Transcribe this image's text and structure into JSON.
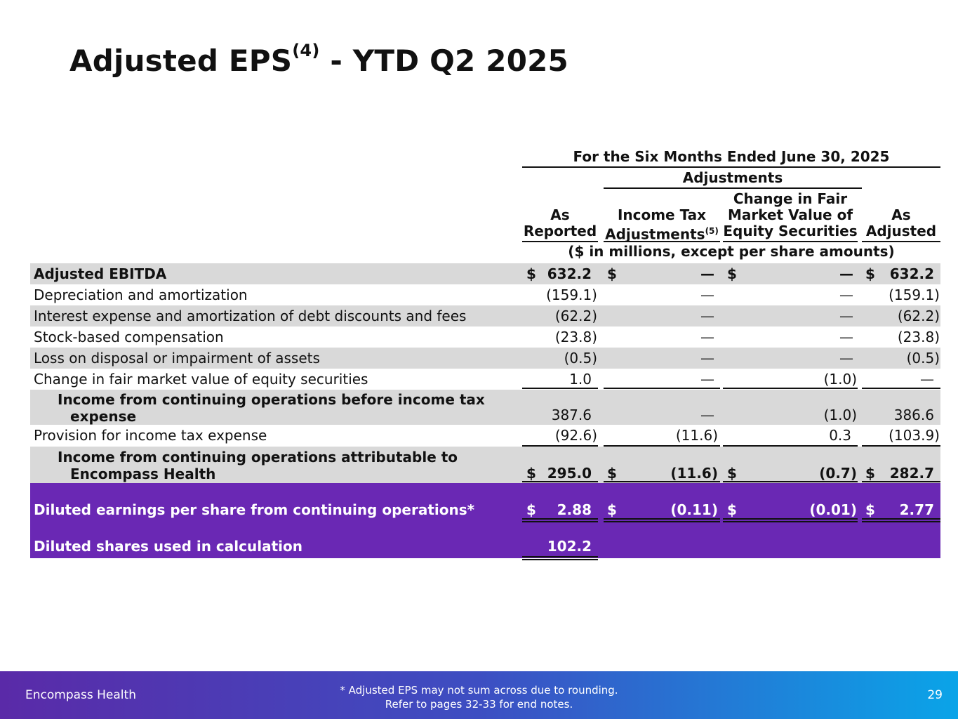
{
  "title": {
    "main": "Adjusted EPS",
    "sup": "(4)",
    "suffix": " - YTD Q2 2025"
  },
  "header": {
    "period": "For the Six Months Ended June 30, 2025",
    "adjustments": "Adjustments",
    "col_reported": [
      "As",
      "Reported"
    ],
    "col_tax": [
      "Income Tax",
      "Adjustments",
      "(5)"
    ],
    "col_fmv": [
      "Change in Fair",
      "Market Value of",
      "Equity Securities"
    ],
    "col_adjusted": [
      "As",
      "Adjusted"
    ],
    "units": "($ in millions, except per share amounts)"
  },
  "rows": [
    {
      "label": "Adjusted EBITDA",
      "reported": "632.2",
      "tax": "—",
      "fmv": "—",
      "adjusted": "632.2",
      "dollar": "$"
    },
    {
      "label": "Depreciation and amortization",
      "reported": "(159.1)",
      "tax": "—",
      "fmv": "—",
      "adjusted": "(159.1)"
    },
    {
      "label": "Interest expense and amortization of debt discounts and fees",
      "reported": "(62.2)",
      "tax": "—",
      "fmv": "—",
      "adjusted": "(62.2)"
    },
    {
      "label": "Stock-based compensation",
      "reported": "(23.8)",
      "tax": "—",
      "fmv": "—",
      "adjusted": "(23.8)"
    },
    {
      "label": "Loss on disposal or impairment of assets",
      "reported": "(0.5)",
      "tax": "—",
      "fmv": "—",
      "adjusted": "(0.5)"
    },
    {
      "label": "Change in fair market value of equity securities",
      "reported": "1.0",
      "tax": "—",
      "fmv": "(1.0)",
      "adjusted": "—"
    },
    {
      "label": [
        "Income from continuing operations before income tax",
        "expense"
      ],
      "reported": "387.6",
      "tax": "—",
      "fmv": "(1.0)",
      "adjusted": "386.6"
    },
    {
      "label": "Provision for income tax expense",
      "reported": "(92.6)",
      "tax": "(11.6)",
      "fmv": "0.3",
      "adjusted": "(103.9)"
    },
    {
      "label": [
        "Income from continuing operations attributable to",
        "Encompass Health"
      ],
      "reported": "295.0",
      "tax": "(11.6)",
      "fmv": "(0.7)",
      "adjusted": "282.7",
      "dollar": "$"
    },
    {
      "label": "Diluted earnings per share from continuing operations*",
      "reported": "2.88",
      "tax": "(0.11)",
      "fmv": "(0.01)",
      "adjusted": "2.77",
      "dollar": "$"
    },
    {
      "label": "Diluted shares used in calculation",
      "reported": "102.2"
    }
  ],
  "footer": {
    "brand": "Encompass Health",
    "note_1": "*  Adjusted EPS may not sum across due to rounding.",
    "note_2": "Refer to pages 32-33 for end notes.",
    "page": "29"
  },
  "colors": {
    "gray_row": "#d9d9d9",
    "purple_row": "#6a28b4",
    "footer_start": "#5a2aa8",
    "footer_end": "#0aa4e8"
  }
}
